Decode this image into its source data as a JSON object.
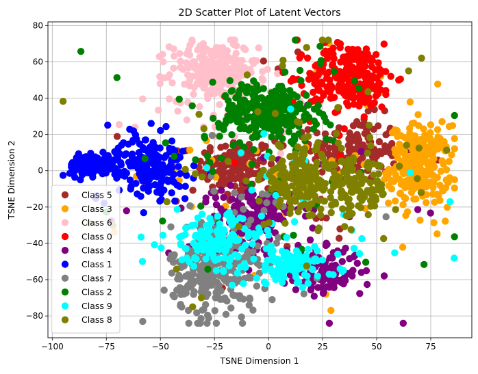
{
  "chart_data": {
    "type": "scatter",
    "title": "2D Scatter Plot of Latent Vectors",
    "xlabel": "TSNE Dimension 1",
    "ylabel": "TSNE Dimension 2",
    "xlim": [
      -102,
      94
    ],
    "ylim": [
      -92,
      82
    ],
    "xticks": [
      -100,
      -75,
      -50,
      -25,
      0,
      25,
      50,
      75
    ],
    "yticks": [
      -80,
      -60,
      -40,
      -20,
      0,
      20,
      40,
      60,
      80
    ],
    "grid": true,
    "legend_position": "lower-left",
    "series": [
      {
        "name": "Class 5",
        "color": "#a52a2a",
        "clusters": [
          {
            "cx": -15,
            "cy": 2,
            "sx": 9,
            "sy": 8,
            "n": 140
          },
          {
            "cx": 40,
            "cy": 12,
            "sx": 10,
            "sy": 9,
            "n": 140
          }
        ],
        "scatter": {
          "cx": 5,
          "cy": 5,
          "sx": 35,
          "sy": 30,
          "n": 50
        }
      },
      {
        "name": "Class 3",
        "color": "#ffa500",
        "clusters": [
          {
            "cx": 70,
            "cy": 3,
            "sx": 7,
            "sy": 11,
            "n": 240
          }
        ],
        "scatter": {
          "cx": 20,
          "cy": 0,
          "sx": 40,
          "sy": 35,
          "n": 55
        }
      },
      {
        "name": "Class 6",
        "color": "#ffc0cb",
        "clusters": [
          {
            "cx": -25,
            "cy": 55,
            "sx": 10,
            "sy": 8,
            "n": 240
          }
        ],
        "scatter": {
          "cx": -20,
          "cy": 40,
          "sx": 20,
          "sy": 15,
          "n": 35
        }
      },
      {
        "name": "Class 0",
        "color": "#ff0000",
        "clusters": [
          {
            "cx": 38,
            "cy": 52,
            "sx": 10,
            "sy": 9,
            "n": 260
          }
        ],
        "scatter": {
          "cx": 25,
          "cy": 40,
          "sx": 20,
          "sy": 15,
          "n": 25
        }
      },
      {
        "name": "Class 4",
        "color": "#800080",
        "clusters": [
          {
            "cx": -8,
            "cy": -25,
            "sx": 9,
            "sy": 8,
            "n": 150
          },
          {
            "cx": 25,
            "cy": -55,
            "sx": 9,
            "sy": 6,
            "n": 130
          }
        ],
        "scatter": {
          "cx": 0,
          "cy": -30,
          "sx": 30,
          "sy": 25,
          "n": 40
        }
      },
      {
        "name": "Class 1",
        "color": "#0000ff",
        "clusters": [
          {
            "cx": -80,
            "cy": 3,
            "sx": 6,
            "sy": 3,
            "n": 130
          },
          {
            "cx": -55,
            "cy": 3,
            "sx": 8,
            "sy": 8,
            "n": 160
          }
        ],
        "scatter": {
          "cx": -60,
          "cy": 5,
          "sx": 15,
          "sy": 12,
          "n": 25
        }
      },
      {
        "name": "Class 7",
        "color": "#808080",
        "clusters": [
          {
            "cx": -25,
            "cy": -55,
            "sx": 10,
            "sy": 13,
            "n": 260
          }
        ],
        "scatter": {
          "cx": -15,
          "cy": -40,
          "sx": 25,
          "sy": 25,
          "n": 45
        }
      },
      {
        "name": "Class 2",
        "color": "#008000",
        "clusters": [
          {
            "cx": 0,
            "cy": 32,
            "sx": 11,
            "sy": 8,
            "n": 260
          }
        ],
        "scatter": {
          "cx": 0,
          "cy": 10,
          "sx": 40,
          "sy": 35,
          "n": 55
        }
      },
      {
        "name": "Class 9",
        "color": "#00ffff",
        "clusters": [
          {
            "cx": -25,
            "cy": -38,
            "sx": 11,
            "sy": 7,
            "n": 120
          },
          {
            "cx": 10,
            "cy": -52,
            "sx": 11,
            "sy": 5,
            "n": 110
          }
        ],
        "scatter": {
          "cx": 0,
          "cy": -30,
          "sx": 35,
          "sy": 25,
          "n": 35
        }
      },
      {
        "name": "Class 8",
        "color": "#808000",
        "clusters": [
          {
            "cx": 15,
            "cy": -5,
            "sx": 9,
            "sy": 9,
            "n": 160
          },
          {
            "cx": 40,
            "cy": -10,
            "sx": 8,
            "sy": 8,
            "n": 120
          }
        ],
        "scatter": {
          "cx": 10,
          "cy": 5,
          "sx": 40,
          "sy": 35,
          "n": 55
        }
      }
    ]
  }
}
